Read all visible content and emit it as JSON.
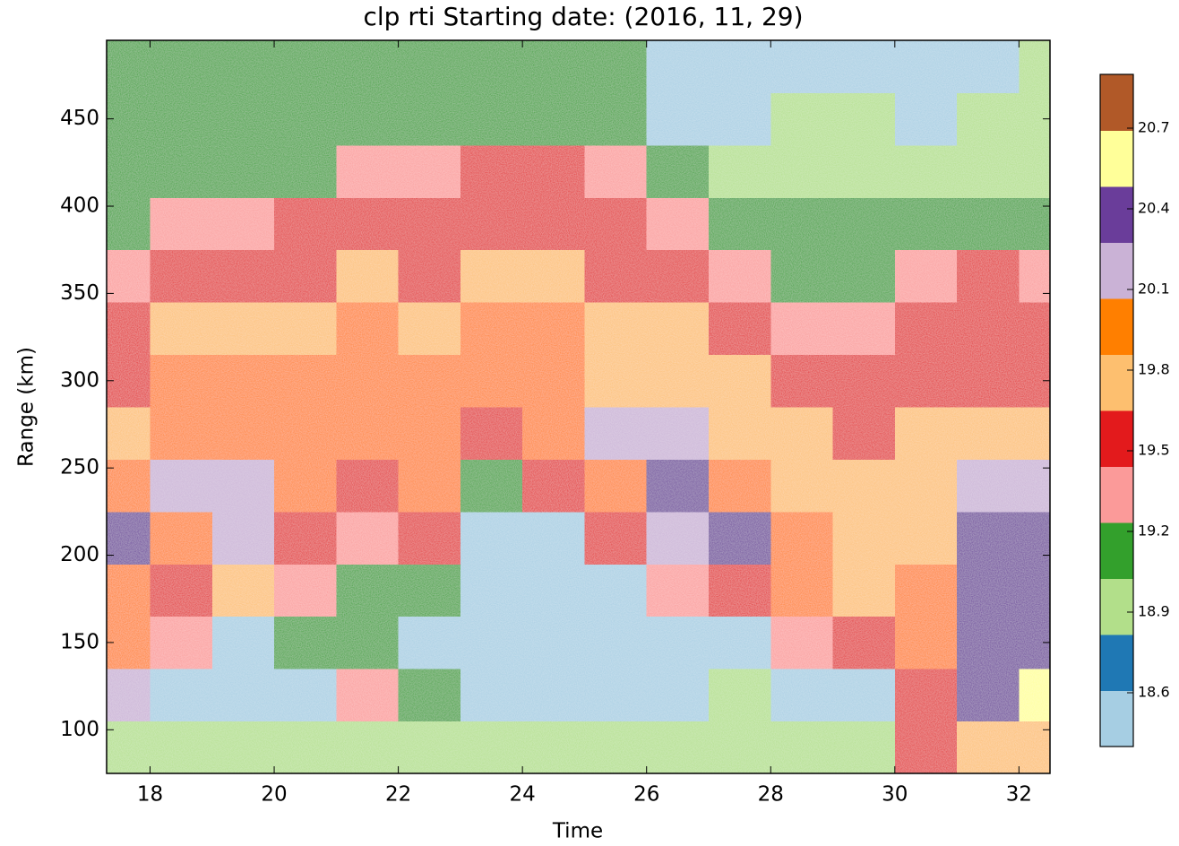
{
  "chart_data": {
    "type": "heatmap",
    "title": "clp rti Starting date: (2016, 11, 29)",
    "x_label": "Time",
    "y_label": "Range (km)",
    "x": [
      17.5,
      18.5,
      19.5,
      20.5,
      21.5,
      22.5,
      23.5,
      24.5,
      25.5,
      26.5,
      27.5,
      28.5,
      29.5,
      30.5,
      31.5,
      32.5
    ],
    "y": [
      90,
      120,
      150,
      180,
      210,
      240,
      270,
      300,
      330,
      360,
      390,
      420,
      450,
      480
    ],
    "z": [
      [
        19.0,
        19.0,
        19.0,
        19.0,
        19.0,
        19.0,
        19.0,
        19.0,
        19.0,
        19.0,
        19.0,
        19.0,
        19.0,
        19.5,
        19.75,
        19.75
      ],
      [
        20.15,
        18.6,
        18.6,
        18.6,
        19.3,
        19.1,
        18.6,
        18.6,
        18.6,
        18.6,
        18.9,
        18.6,
        18.6,
        19.5,
        20.4,
        20.65
      ],
      [
        19.95,
        19.3,
        18.6,
        19.1,
        19.1,
        18.6,
        18.6,
        18.6,
        18.6,
        18.6,
        18.6,
        19.3,
        19.5,
        19.95,
        20.4,
        20.4
      ],
      [
        19.95,
        19.5,
        19.75,
        19.3,
        19.1,
        19.1,
        18.6,
        18.6,
        18.6,
        19.3,
        19.5,
        19.95,
        19.75,
        19.95,
        20.4,
        20.4
      ],
      [
        20.4,
        19.95,
        20.15,
        19.5,
        19.3,
        19.5,
        18.6,
        18.6,
        19.5,
        20.15,
        20.4,
        19.95,
        19.75,
        19.75,
        20.4,
        20.4
      ],
      [
        19.95,
        20.15,
        20.15,
        19.95,
        19.5,
        19.95,
        19.1,
        19.5,
        19.95,
        20.4,
        19.95,
        19.75,
        19.75,
        19.75,
        20.15,
        20.15
      ],
      [
        19.75,
        19.95,
        19.95,
        19.95,
        19.95,
        19.95,
        19.5,
        19.95,
        20.15,
        20.15,
        19.75,
        19.75,
        19.5,
        19.75,
        19.75,
        19.75
      ],
      [
        19.5,
        19.95,
        19.95,
        19.95,
        19.95,
        19.95,
        19.95,
        19.95,
        19.75,
        19.75,
        19.75,
        19.5,
        19.5,
        19.5,
        19.5,
        19.5
      ],
      [
        19.5,
        19.75,
        19.75,
        19.75,
        19.95,
        19.75,
        19.95,
        19.95,
        19.75,
        19.75,
        19.5,
        19.3,
        19.3,
        19.5,
        19.5,
        19.5
      ],
      [
        19.3,
        19.5,
        19.5,
        19.5,
        19.75,
        19.5,
        19.75,
        19.75,
        19.5,
        19.5,
        19.3,
        19.1,
        19.1,
        19.3,
        19.5,
        19.3
      ],
      [
        19.2,
        19.3,
        19.3,
        19.5,
        19.5,
        19.5,
        19.5,
        19.5,
        19.5,
        19.3,
        19.1,
        19.1,
        19.1,
        19.1,
        19.1,
        19.1
      ],
      [
        19.1,
        19.1,
        19.2,
        19.2,
        19.3,
        19.3,
        19.5,
        19.5,
        19.3,
        19.1,
        19.0,
        19.0,
        19.0,
        19.0,
        19.0,
        19.0
      ],
      [
        19.1,
        19.1,
        19.1,
        19.1,
        19.1,
        19.1,
        19.1,
        19.1,
        19.1,
        18.6,
        18.6,
        19.0,
        18.9,
        18.6,
        18.9,
        19.0
      ],
      [
        19.1,
        19.1,
        19.1,
        19.1,
        19.1,
        19.1,
        19.1,
        19.1,
        19.1,
        18.6,
        18.6,
        18.6,
        18.6,
        18.6,
        18.6,
        18.9
      ]
    ],
    "xlim": [
      17.3,
      32.5
    ],
    "ylim": [
      75,
      495
    ],
    "xticks": [
      18,
      20,
      22,
      24,
      26,
      28,
      30,
      32
    ],
    "yticks": [
      100,
      150,
      200,
      250,
      300,
      350,
      400,
      450
    ],
    "clim": [
      18.4,
      20.9
    ],
    "cticks": [
      18.6,
      18.9,
      19.2,
      19.5,
      19.8,
      20.1,
      20.4,
      20.7
    ],
    "colormap": [
      "#a6cee3",
      "#1f78b4",
      "#b2df8a",
      "#33a02c",
      "#fb9a99",
      "#e31a1c",
      "#fdbf6f",
      "#ff7f00",
      "#cab2d6",
      "#6a3d9a",
      "#ffff99",
      "#b15928"
    ]
  }
}
